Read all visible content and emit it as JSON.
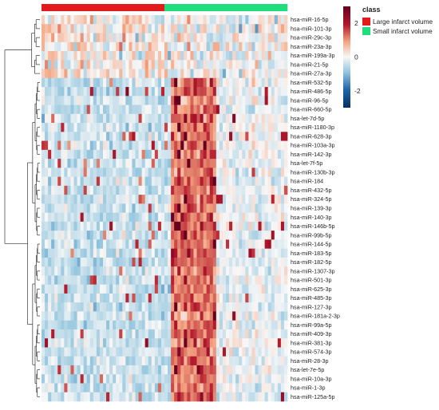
{
  "chart_data": {
    "type": "heatmap",
    "title": "",
    "xlabel": "",
    "ylabel": "",
    "rows": [
      "hsa-miR-16-5p",
      "hsa-miR-101-3p",
      "hsa-miR-29c-3p",
      "hsa-miR-23a-3p",
      "hsa-miR-199a-3p",
      "hsa-miR-21-5p",
      "hsa-miR-27a-3p",
      "hsa-miR-532-5p",
      "hsa-miR-486-5p",
      "hsa-miR-96-5p",
      "hsa-miR-660-5p",
      "hsa-let-7d-5p",
      "hsa-miR-1180-3p",
      "hsa-miR-628-3p",
      "hsa-miR-103a-3p",
      "hsa-miR-142-3p",
      "hsa-let-7f-5p",
      "hsa-miR-130b-3p",
      "hsa-miR-184",
      "hsa-miR-432-5p",
      "hsa-miR-324-5p",
      "hsa-miR-139-3p",
      "hsa-miR-140-3p",
      "hsa-miR-146b-5p",
      "hsa-miR-99b-5p",
      "hsa-miR-144-5p",
      "hsa-miR-183-5p",
      "hsa-miR-182-5p",
      "hsa-miR-1307-3p",
      "hsa-miR-501-3p",
      "hsa-miR-625-3p",
      "hsa-miR-485-3p",
      "hsa-miR-127-3p",
      "hsa-miR-181a-2-3p",
      "hsa-miR-99a-5p",
      "hsa-miR-409-3p",
      "hsa-miR-381-3p",
      "hsa-miR-574-3p",
      "hsa-miR-28-3p",
      "hsa-let-7e-5p",
      "hsa-miR-10a-3p",
      "hsa-miR-1-3p",
      "hsa-miR-125a-5p"
    ],
    "annotation": {
      "title": "class",
      "groups": [
        {
          "name": "Large infarct volume",
          "color": "#e31a1c",
          "count": 38
        },
        {
          "name": "Small infarct volume",
          "color": "#1fdc7c",
          "count": 38
        }
      ]
    },
    "color_scale": {
      "ticks": [
        "2",
        "0",
        "-2"
      ],
      "tick_values": [
        2,
        0,
        -2
      ],
      "range": [
        -3,
        3
      ],
      "colors": {
        "low": "#053061",
        "mid": "#f7f7f7",
        "high": "#67001f"
      }
    },
    "value_note": "Cell values are z-scores; the grid shows row blocks 0-6 higher in the Large group and rows 7-42 sharply higher in the first ~14 Small-group samples."
  }
}
